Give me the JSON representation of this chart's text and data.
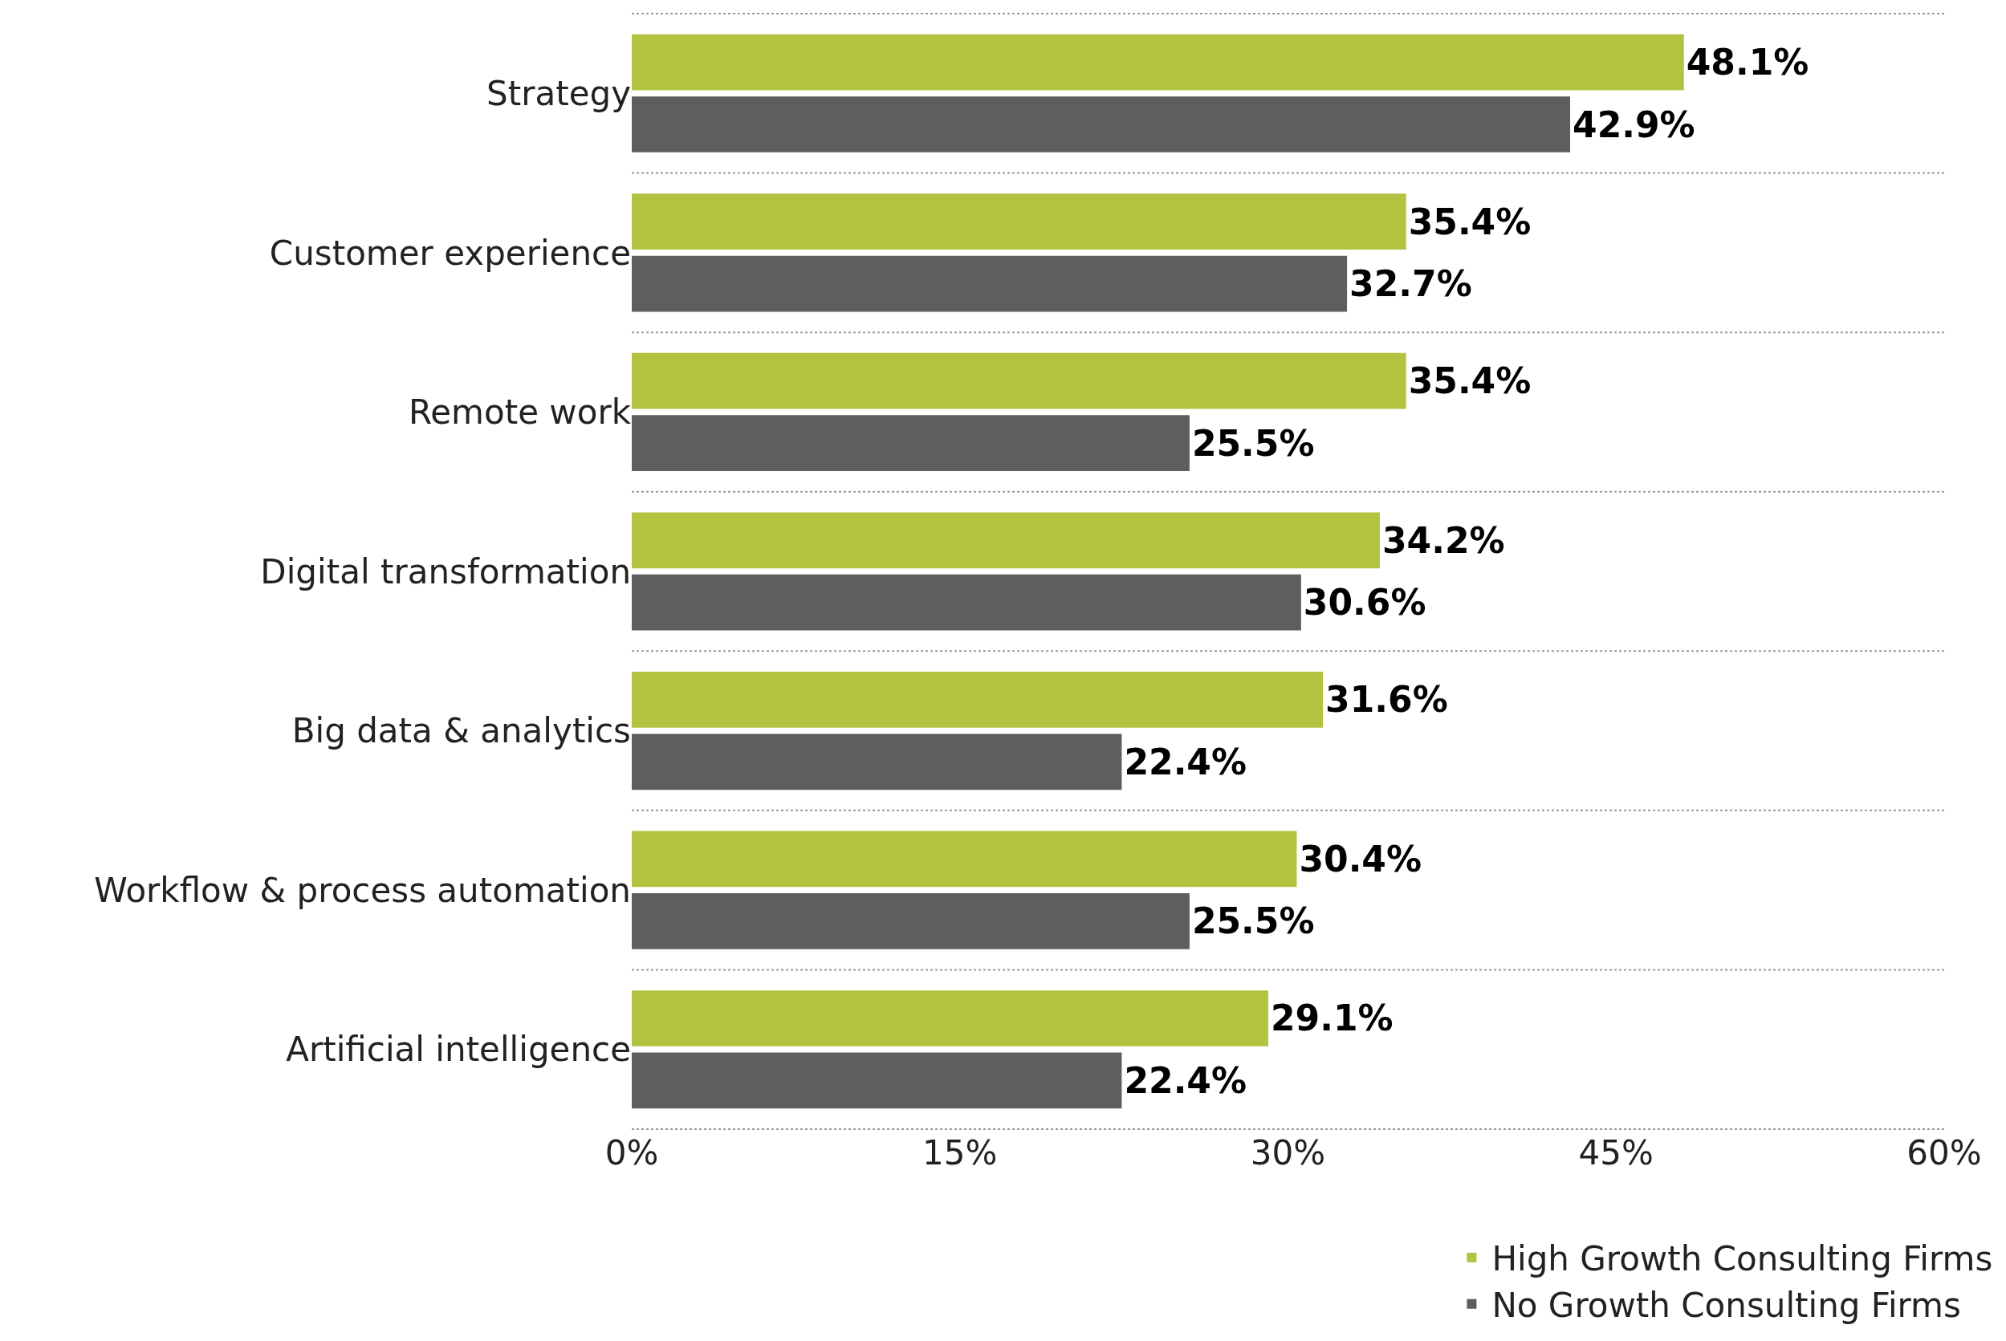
{
  "chart_data": {
    "type": "bar",
    "orientation": "horizontal",
    "categories": [
      "Strategy",
      "Customer experience",
      "Remote work",
      "Digital transformation",
      "Big data & analytics",
      "Workflow & process automation",
      "Artificial intelligence"
    ],
    "series": [
      {
        "name": "High Growth Consulting Firms",
        "color": "#b3c23f",
        "values": [
          48.1,
          35.4,
          35.4,
          34.2,
          31.6,
          30.4,
          29.1
        ],
        "value_labels": [
          "48.1%",
          "35.4%",
          "35.4%",
          "34.2%",
          "31.6%",
          "30.4%",
          "29.1%"
        ]
      },
      {
        "name": "No Growth Consulting Firms",
        "color": "#5e5e5e",
        "values": [
          42.9,
          32.7,
          25.5,
          30.6,
          22.4,
          25.5,
          22.4
        ],
        "value_labels": [
          "42.9%",
          "32.7%",
          "25.5%",
          "30.6%",
          "22.4%",
          "25.5%",
          "22.4%"
        ]
      }
    ],
    "xlim": [
      0,
      60
    ],
    "xticks": [
      {
        "value": 0,
        "label": "0%"
      },
      {
        "value": 15,
        "label": "15%"
      },
      {
        "value": 30,
        "label": "30%"
      },
      {
        "value": 45,
        "label": "45%"
      },
      {
        "value": 60,
        "label": "60%"
      }
    ],
    "grid": "y",
    "legend": "bottom right"
  }
}
